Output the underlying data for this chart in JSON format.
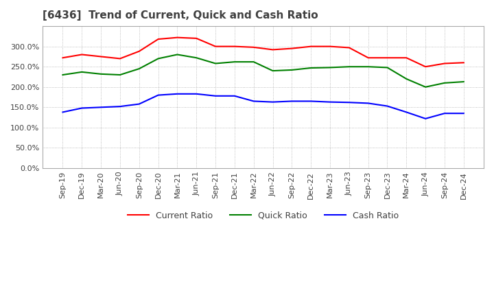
{
  "title": "[6436]  Trend of Current, Quick and Cash Ratio",
  "x_labels": [
    "Sep-19",
    "Dec-19",
    "Mar-20",
    "Jun-20",
    "Sep-20",
    "Dec-20",
    "Mar-21",
    "Jun-21",
    "Sep-21",
    "Dec-21",
    "Mar-22",
    "Jun-22",
    "Sep-22",
    "Dec-22",
    "Mar-23",
    "Jun-23",
    "Sep-23",
    "Dec-23",
    "Mar-24",
    "Jun-24",
    "Sep-24",
    "Dec-24"
  ],
  "current_ratio": [
    272,
    280,
    275,
    270,
    288,
    318,
    322,
    320,
    300,
    300,
    298,
    292,
    295,
    300,
    300,
    297,
    272,
    272,
    272,
    250,
    258,
    260
  ],
  "quick_ratio": [
    230,
    237,
    232,
    230,
    245,
    270,
    280,
    272,
    258,
    262,
    262,
    240,
    242,
    247,
    248,
    250,
    250,
    248,
    220,
    200,
    210,
    213
  ],
  "cash_ratio": [
    138,
    148,
    150,
    152,
    158,
    180,
    183,
    183,
    178,
    178,
    165,
    163,
    165,
    165,
    163,
    162,
    160,
    153,
    138,
    122,
    135,
    135
  ],
  "ylim": [
    0,
    350
  ],
  "yticks": [
    0,
    50,
    100,
    150,
    200,
    250,
    300
  ],
  "current_color": "#ff0000",
  "quick_color": "#008000",
  "cash_color": "#0000ff",
  "bg_color": "#ffffff",
  "plot_bg_color": "#ffffff",
  "grid_color": "#aaaaaa",
  "title_color": "#404040",
  "title_fontsize": 11,
  "tick_fontsize": 8,
  "legend_fontsize": 9
}
